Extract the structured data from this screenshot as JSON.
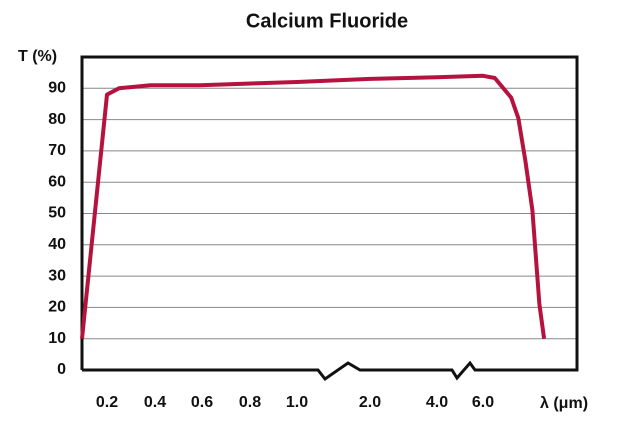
{
  "chart_data": {
    "type": "line",
    "title": "Calcium Fluoride",
    "y_label": "T (%)",
    "x_label": "λ (μm)",
    "x": [
      0.1,
      0.2,
      0.25,
      0.38,
      0.59,
      1.0,
      2.0,
      4.0,
      6.0,
      6.5,
      7.2,
      7.5,
      7.8,
      8.1,
      8.4,
      8.6
    ],
    "series": [
      {
        "name": "Calcium Fluoride",
        "color": "#b5123f",
        "values": [
          10,
          88,
          90,
          91,
          91,
          92,
          93,
          93.5,
          94,
          93.3,
          87,
          80.5,
          67,
          51,
          21,
          10
        ]
      }
    ],
    "xlim": [
      0.1,
      10
    ],
    "xticks": [
      0.2,
      0.4,
      0.6,
      0.8,
      {
        "value": 1.0,
        "label": "1.0"
      },
      {
        "value": 2.0,
        "label": "2.0"
      },
      {
        "value": 4.0,
        "label": "4.0"
      },
      {
        "value": 6.0,
        "label": "6.0"
      }
    ],
    "ylim": [
      0,
      100
    ],
    "yticks": [
      0,
      10,
      20,
      30,
      40,
      50,
      60,
      70,
      80,
      90
    ],
    "grid": true
  }
}
